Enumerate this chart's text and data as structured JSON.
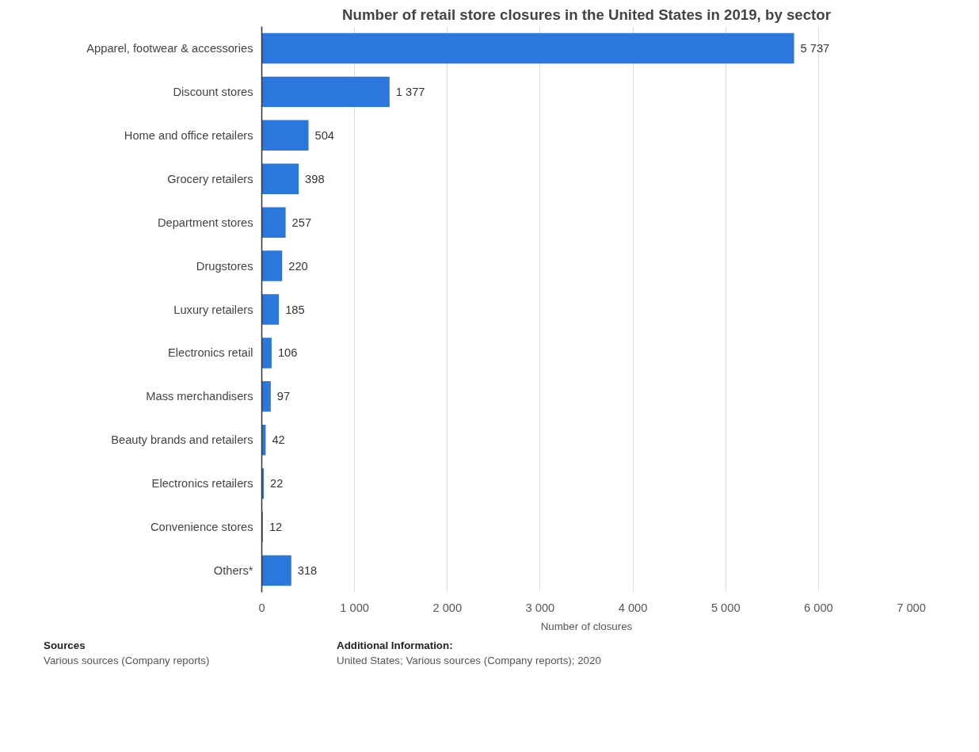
{
  "chart_data": {
    "type": "bar",
    "orientation": "horizontal",
    "title": "Number of retail store closures in the United States in 2019, by sector",
    "xlabel": "Number of closures",
    "categories": [
      "Apparel, footwear & accessories",
      "Discount stores",
      "Home and office retailers",
      "Grocery retailers",
      "Department stores",
      "Drugstores",
      "Luxury retailers",
      "Electronics retail",
      "Mass merchandisers",
      "Beauty brands and retailers",
      "Electronics retailers",
      "Convenience stores",
      "Others*"
    ],
    "values": [
      5737,
      1377,
      504,
      398,
      257,
      220,
      185,
      106,
      97,
      42,
      22,
      12,
      318
    ],
    "value_labels": [
      "5 737",
      "1 377",
      "504",
      "398",
      "257",
      "220",
      "185",
      "106",
      "97",
      "42",
      "22",
      "12",
      "318"
    ],
    "color": "#2a77de",
    "xlim": [
      0,
      7000
    ],
    "xticks": [
      0,
      {
        "value": 1000,
        "label": "1 000"
      },
      {
        "value": 2000,
        "label": "2 000"
      },
      {
        "value": 3000,
        "label": "3 000"
      },
      {
        "value": 4000,
        "label": "4 000"
      },
      {
        "value": 5000,
        "label": "5 000"
      },
      {
        "value": 6000,
        "label": "6 000"
      },
      {
        "value": 7000,
        "label": "7 000"
      }
    ],
    "grid": "x",
    "annotations": [
      "Sources",
      "Various sources (Company reports)",
      "Additional Information:",
      "United States; Various sources (Company reports); 2020"
    ]
  }
}
